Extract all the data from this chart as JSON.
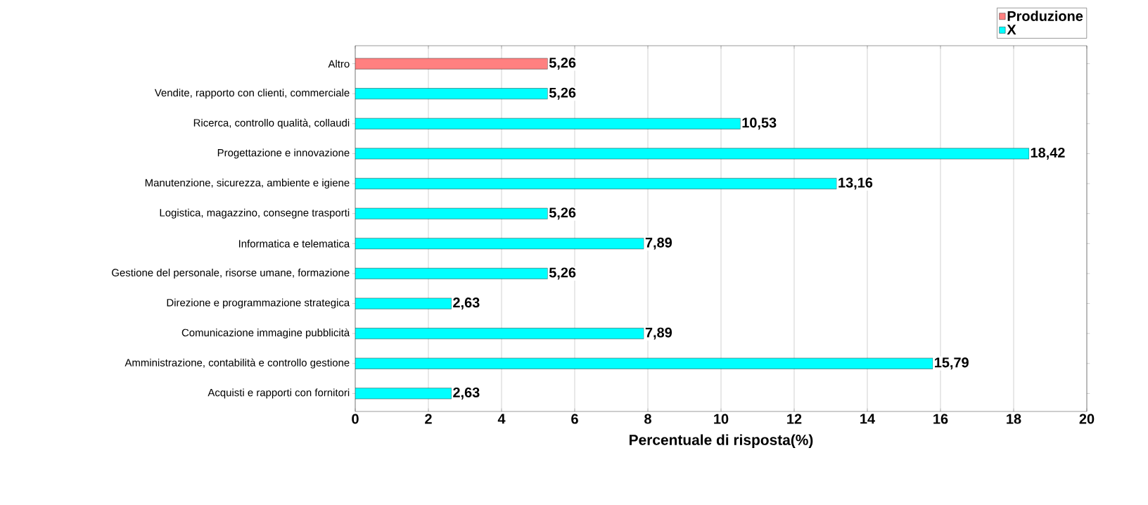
{
  "chart_data": {
    "type": "bar",
    "orientation": "horizontal",
    "xlabel": "Percentuale di risposta(%)",
    "categories": [
      "Altro",
      "Vendite, rapporto con clienti, commerciale",
      "Ricerca, controllo qualità, collaudi",
      "Progettazione e innovazione",
      "Manutenzione, sicurezza, ambiente e igiene",
      "Logistica, magazzino, consegne trasporti",
      "Informatica e telematica",
      "Gestione del personale, risorse umane, formazione",
      "Direzione e programmazione strategica",
      "Comunicazione immagine pubblicità",
      "Amministrazione, contabilità e controllo gestione",
      "Acquisti e rapporti con fornitori"
    ],
    "series": [
      {
        "name": "Produzione",
        "color": "#ff8080",
        "values": [
          5.26,
          null,
          null,
          null,
          null,
          null,
          null,
          null,
          null,
          null,
          null,
          null
        ],
        "value_labels": [
          "5,26",
          null,
          null,
          null,
          null,
          null,
          null,
          null,
          null,
          null,
          null,
          null
        ]
      },
      {
        "name": "X",
        "color": "#00ffff",
        "values": [
          null,
          5.26,
          10.53,
          18.42,
          13.16,
          5.26,
          7.89,
          5.26,
          2.63,
          7.89,
          15.79,
          2.63
        ],
        "value_labels": [
          null,
          "5,26",
          "10,53",
          "18,42",
          "13,16",
          "5,26",
          "7,89",
          "5,26",
          "2,63",
          "7,89",
          "15,79",
          "2,63"
        ]
      }
    ],
    "xlim": [
      0,
      20
    ],
    "xticks": [
      0,
      2,
      4,
      6,
      8,
      10,
      12,
      14,
      16,
      18,
      20
    ],
    "grid": "x",
    "legend": "top right"
  }
}
